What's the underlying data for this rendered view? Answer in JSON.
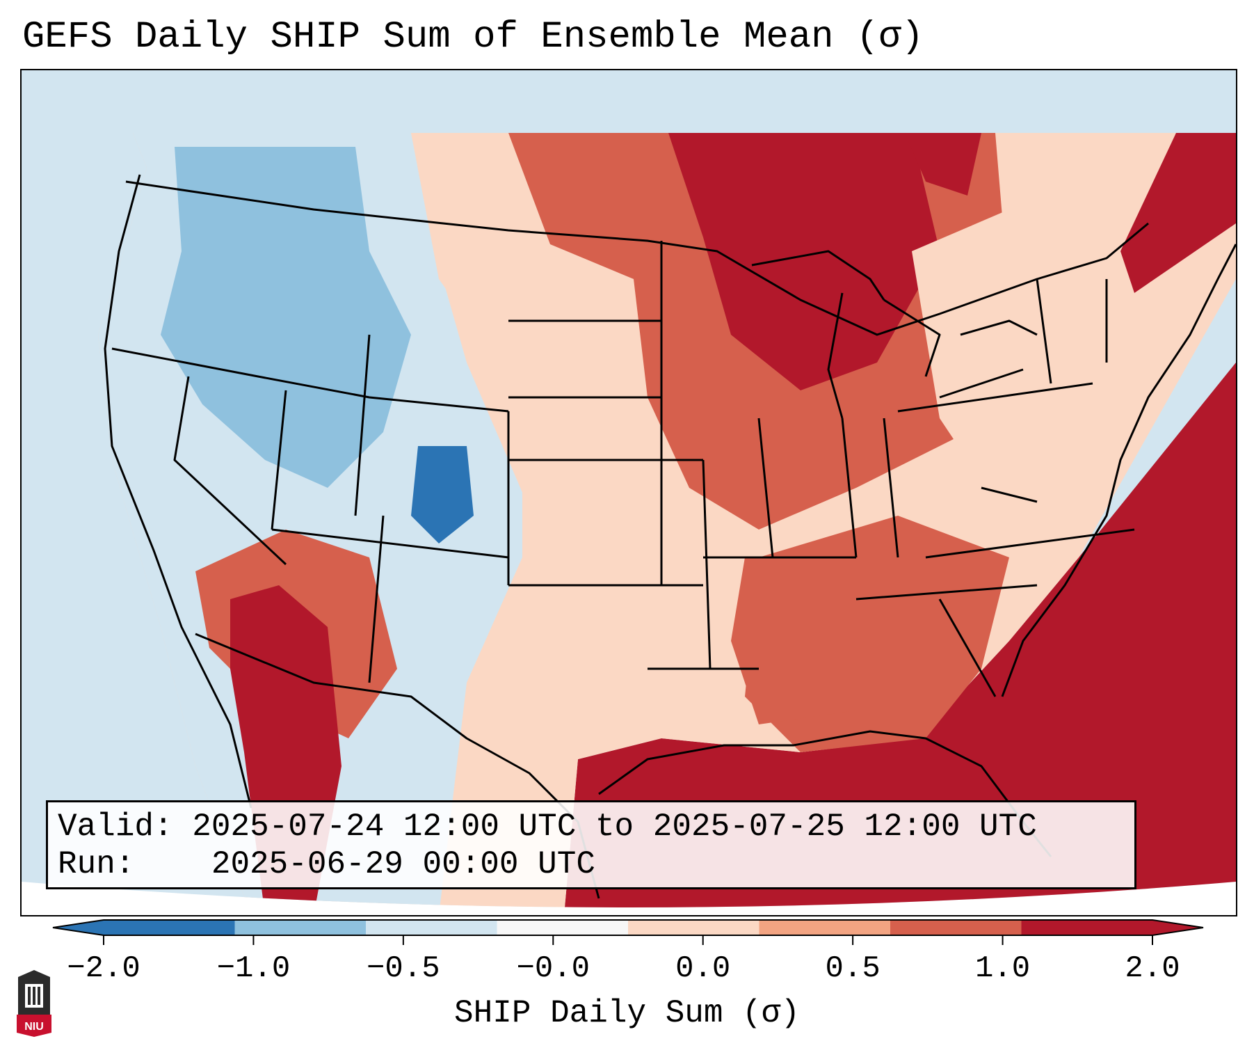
{
  "title": "GEFS Daily SHIP Sum of Ensemble Mean (σ)",
  "info": {
    "valid_label": "Valid:",
    "valid_value": "2025-07-24 12:00 UTC to 2025-07-25 12:00 UTC",
    "run_label": "Run:",
    "run_value": "2025-06-29 00:00 UTC"
  },
  "colorbar": {
    "label": "SHIP Daily Sum (σ)",
    "ticks": [
      "−2.0",
      "−1.0",
      "−0.5",
      "−0.0",
      "0.0",
      "0.5",
      "1.0",
      "2.0"
    ],
    "colors": [
      "#2b74b4",
      "#8fc1de",
      "#d2e5f0",
      "#f7f7f7",
      "#fbd8c4",
      "#f3a482",
      "#d6604d",
      "#b2182b"
    ],
    "extend": "both"
  },
  "map_colors": {
    "ocean_west": "#d2e5f0",
    "ocean_east_gulf": "#b2182b",
    "land_neutral": "#fbd8c4",
    "borders": "#000000"
  },
  "logo": {
    "text": "NIU"
  }
}
